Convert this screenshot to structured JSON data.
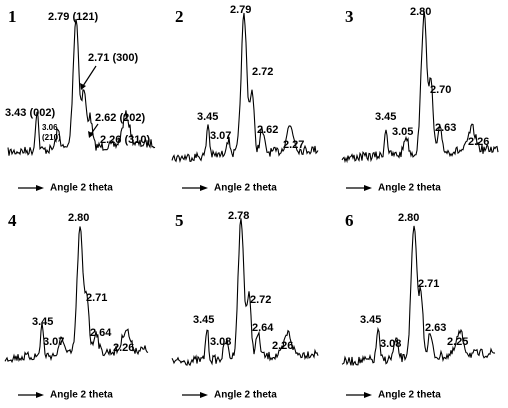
{
  "panels": [
    {
      "number": "1",
      "labels": [
        "2.79 (121)",
        "2.71 (300)",
        "3.43 (002)",
        "3.06",
        "(210)",
        "2.62 (202)",
        "2.26 (310)"
      ],
      "axis_label": "Angle 2 theta"
    },
    {
      "number": "2",
      "labels": [
        "2.79",
        "2.72",
        "3.45",
        "3.07",
        "2.62",
        "2.27"
      ],
      "axis_label": "Angle 2 theta"
    },
    {
      "number": "3",
      "labels": [
        "2.80",
        "2.70",
        "3.45",
        "3.05",
        "2.63",
        "2.26"
      ],
      "axis_label": "Angle 2 theta"
    },
    {
      "number": "4",
      "labels": [
        "2.80",
        "2.71",
        "3.45",
        "3.07",
        "2.64",
        "2.26"
      ],
      "axis_label": "Angle 2 theta"
    },
    {
      "number": "5",
      "labels": [
        "2.78",
        "2.72",
        "3.45",
        "3.08",
        "2.64",
        "2.26"
      ],
      "axis_label": "Angle 2 theta"
    },
    {
      "number": "6",
      "labels": [
        "2.80",
        "2.71",
        "3.45",
        "3.08",
        "2.63",
        "2.25"
      ],
      "axis_label": "Angle 2 theta"
    }
  ]
}
